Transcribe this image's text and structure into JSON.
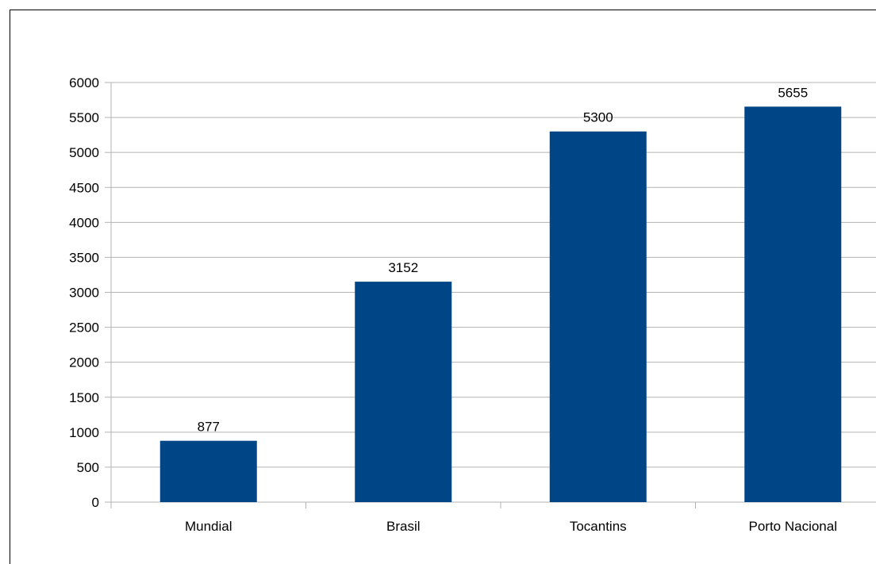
{
  "chart_data": {
    "type": "bar",
    "categories": [
      "Mundial",
      "Brasil",
      "Tocantins",
      "Porto Nacional"
    ],
    "values": [
      877,
      3152,
      5300,
      5655
    ],
    "data_labels": [
      "877",
      "3152",
      "5300",
      "5655"
    ],
    "ylim": [
      0,
      6000
    ],
    "yticks": [
      0,
      500,
      1000,
      1500,
      2000,
      2500,
      3000,
      3500,
      4000,
      4500,
      5000,
      5500,
      6000
    ],
    "ytick_labels": [
      "0",
      "500",
      "1000",
      "1500",
      "2000",
      "2500",
      "3000",
      "3500",
      "4000",
      "4500",
      "5000",
      "5500",
      "6000"
    ],
    "title": "",
    "xlabel": "",
    "ylabel": "",
    "grid": true,
    "legend": "none",
    "bar_color": "#004586",
    "grid_color": "#b3b3b3"
  }
}
